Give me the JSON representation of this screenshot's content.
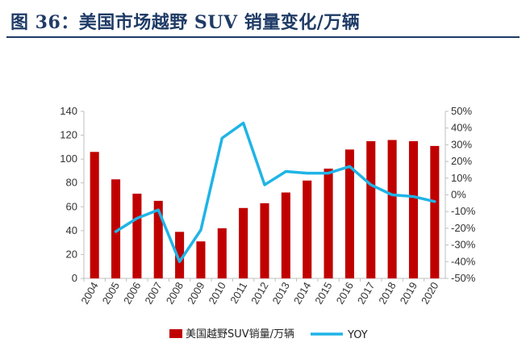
{
  "header": {
    "title": "图 36：美国市场越野 SUV 销量变化/万辆"
  },
  "chart_data": {
    "type": "bar",
    "categories": [
      "2004",
      "2005",
      "2006",
      "2007",
      "2008",
      "2009",
      "2010",
      "2011",
      "2012",
      "2013",
      "2014",
      "2015",
      "2016",
      "2017",
      "2018",
      "2019",
      "2020"
    ],
    "series": [
      {
        "name": "美国越野SUV销量/万辆",
        "type": "bar",
        "axis": "left",
        "color": "#c00000",
        "values": [
          106,
          83,
          71,
          65,
          39,
          31,
          42,
          59,
          63,
          72,
          82,
          92,
          108,
          115,
          116,
          115,
          111
        ]
      },
      {
        "name": "YOY",
        "type": "line",
        "axis": "right",
        "color": "#1fb4e6",
        "values": [
          null,
          -22,
          -14,
          -9,
          -40,
          -21,
          34,
          43,
          6,
          14,
          13,
          13,
          17,
          6,
          0,
          -1,
          -4
        ]
      }
    ],
    "y_left": {
      "min": 0,
      "max": 140,
      "ticks": [
        0,
        20,
        40,
        60,
        80,
        100,
        120,
        140
      ]
    },
    "y_right": {
      "min": -50,
      "max": 50,
      "ticks": [
        50,
        40,
        30,
        20,
        10,
        0,
        -10,
        -20,
        -30,
        -40,
        -50
      ],
      "tick_labels": [
        "50%",
        "40%",
        "30%",
        "20%",
        "10%",
        "0%",
        "-10%",
        "-20%",
        "-30%",
        "-40%",
        "-50%"
      ]
    },
    "legend": {
      "placement": "bottom",
      "items": [
        {
          "label": "美国越野SUV销量/万辆",
          "marker": "bar",
          "color": "#c00000"
        },
        {
          "label": "YOY",
          "marker": "line",
          "color": "#1fb4e6"
        }
      ]
    },
    "grid": false
  }
}
